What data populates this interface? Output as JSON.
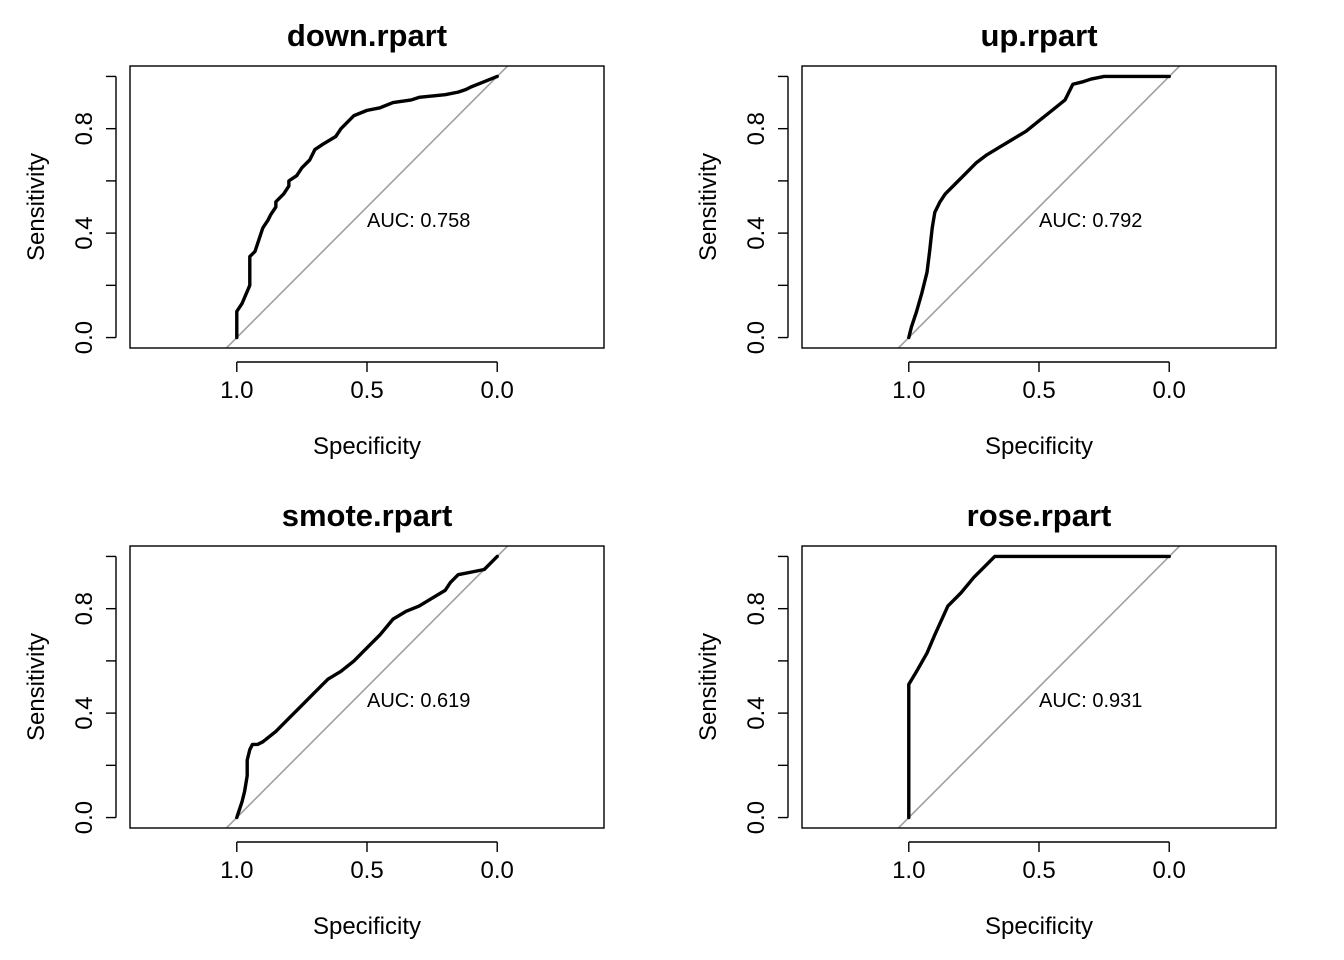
{
  "chart_data": [
    {
      "type": "line",
      "title": "down.rpart",
      "xlabel": "Specificity",
      "ylabel": "Sensitivity",
      "x_reversed": true,
      "xlim": [
        1.41,
        -0.41
      ],
      "ylim": [
        -0.04,
        1.04
      ],
      "x_ticks": [
        1.0,
        0.5,
        0.0
      ],
      "x_tick_labels": [
        "1.0",
        "0.5",
        "0.0"
      ],
      "y_ticks": [
        0.0,
        0.2,
        0.4,
        0.6,
        0.8,
        1.0
      ],
      "y_tick_labels": [
        "0.0",
        "",
        "0.4",
        "",
        "0.8",
        ""
      ],
      "auc_text": "AUC: 0.758",
      "auc_pos": [
        0.5,
        0.45
      ],
      "grid": false,
      "colors": {
        "curve": "#000000",
        "diagonal": "#a0a0a0"
      },
      "series": [
        {
          "x": [
            1.0,
            1.0,
            0.98,
            0.95,
            0.95,
            0.93,
            0.92,
            0.9,
            0.88,
            0.87,
            0.85,
            0.85,
            0.82,
            0.8,
            0.8,
            0.77,
            0.75,
            0.72,
            0.7,
            0.67,
            0.62,
            0.6,
            0.58,
            0.55,
            0.5,
            0.45,
            0.4,
            0.33,
            0.3,
            0.2,
            0.15,
            0.12,
            0.1,
            0.05,
            0.0
          ],
          "y": [
            0.0,
            0.1,
            0.13,
            0.2,
            0.31,
            0.33,
            0.36,
            0.42,
            0.45,
            0.47,
            0.5,
            0.52,
            0.55,
            0.58,
            0.6,
            0.62,
            0.65,
            0.68,
            0.72,
            0.74,
            0.77,
            0.8,
            0.82,
            0.85,
            0.87,
            0.88,
            0.9,
            0.91,
            0.92,
            0.93,
            0.94,
            0.95,
            0.96,
            0.98,
            1.0
          ]
        }
      ]
    },
    {
      "type": "line",
      "title": "up.rpart",
      "xlabel": "Specificity",
      "ylabel": "Sensitivity",
      "x_reversed": true,
      "xlim": [
        1.41,
        -0.41
      ],
      "ylim": [
        -0.04,
        1.04
      ],
      "x_ticks": [
        1.0,
        0.5,
        0.0
      ],
      "x_tick_labels": [
        "1.0",
        "0.5",
        "0.0"
      ],
      "y_ticks": [
        0.0,
        0.2,
        0.4,
        0.6,
        0.8,
        1.0
      ],
      "y_tick_labels": [
        "0.0",
        "",
        "0.4",
        "",
        "0.8",
        ""
      ],
      "auc_text": "AUC: 0.792",
      "auc_pos": [
        0.5,
        0.45
      ],
      "grid": false,
      "colors": {
        "curve": "#000000",
        "diagonal": "#a0a0a0"
      },
      "series": [
        {
          "x": [
            1.0,
            0.99,
            0.97,
            0.95,
            0.93,
            0.92,
            0.91,
            0.9,
            0.88,
            0.86,
            0.82,
            0.78,
            0.74,
            0.7,
            0.65,
            0.6,
            0.55,
            0.5,
            0.45,
            0.4,
            0.37,
            0.33,
            0.3,
            0.25,
            0.2,
            0.1,
            0.0
          ],
          "y": [
            0.0,
            0.04,
            0.1,
            0.17,
            0.25,
            0.33,
            0.42,
            0.48,
            0.52,
            0.55,
            0.59,
            0.63,
            0.67,
            0.7,
            0.73,
            0.76,
            0.79,
            0.83,
            0.87,
            0.91,
            0.97,
            0.98,
            0.99,
            1.0,
            1.0,
            1.0,
            1.0
          ]
        }
      ]
    },
    {
      "type": "line",
      "title": "smote.rpart",
      "xlabel": "Specificity",
      "ylabel": "Sensitivity",
      "x_reversed": true,
      "xlim": [
        1.41,
        -0.41
      ],
      "ylim": [
        -0.04,
        1.04
      ],
      "x_ticks": [
        1.0,
        0.5,
        0.0
      ],
      "x_tick_labels": [
        "1.0",
        "0.5",
        "0.0"
      ],
      "y_ticks": [
        0.0,
        0.2,
        0.4,
        0.6,
        0.8,
        1.0
      ],
      "y_tick_labels": [
        "0.0",
        "",
        "0.4",
        "",
        "0.8",
        ""
      ],
      "auc_text": "AUC: 0.619",
      "auc_pos": [
        0.5,
        0.45
      ],
      "grid": false,
      "colors": {
        "curve": "#000000",
        "diagonal": "#a0a0a0"
      },
      "series": [
        {
          "x": [
            1.0,
            0.99,
            0.98,
            0.97,
            0.96,
            0.96,
            0.95,
            0.94,
            0.92,
            0.9,
            0.85,
            0.8,
            0.75,
            0.7,
            0.65,
            0.6,
            0.55,
            0.5,
            0.45,
            0.4,
            0.35,
            0.3,
            0.25,
            0.2,
            0.18,
            0.15,
            0.1,
            0.05,
            0.03,
            0.0
          ],
          "y": [
            0.0,
            0.03,
            0.06,
            0.1,
            0.16,
            0.22,
            0.26,
            0.28,
            0.28,
            0.29,
            0.33,
            0.38,
            0.43,
            0.48,
            0.53,
            0.56,
            0.6,
            0.65,
            0.7,
            0.76,
            0.79,
            0.81,
            0.84,
            0.87,
            0.9,
            0.93,
            0.94,
            0.95,
            0.97,
            1.0
          ]
        }
      ]
    },
    {
      "type": "line",
      "title": "rose.rpart",
      "xlabel": "Specificity",
      "ylabel": "Sensitivity",
      "x_reversed": true,
      "xlim": [
        1.41,
        -0.41
      ],
      "ylim": [
        -0.04,
        1.04
      ],
      "x_ticks": [
        1.0,
        0.5,
        0.0
      ],
      "x_tick_labels": [
        "1.0",
        "0.5",
        "0.0"
      ],
      "y_ticks": [
        0.0,
        0.2,
        0.4,
        0.6,
        0.8,
        1.0
      ],
      "y_tick_labels": [
        "0.0",
        "",
        "0.4",
        "",
        "0.8",
        ""
      ],
      "auc_text": "AUC: 0.931",
      "auc_pos": [
        0.5,
        0.45
      ],
      "grid": false,
      "colors": {
        "curve": "#000000",
        "diagonal": "#a0a0a0"
      },
      "series": [
        {
          "x": [
            1.0,
            1.0,
            0.97,
            0.93,
            0.9,
            0.85,
            0.8,
            0.75,
            0.7,
            0.67,
            0.5,
            0.3,
            0.0
          ],
          "y": [
            0.0,
            0.51,
            0.56,
            0.63,
            0.7,
            0.81,
            0.86,
            0.92,
            0.97,
            1.0,
            1.0,
            1.0,
            1.0
          ]
        }
      ]
    }
  ]
}
